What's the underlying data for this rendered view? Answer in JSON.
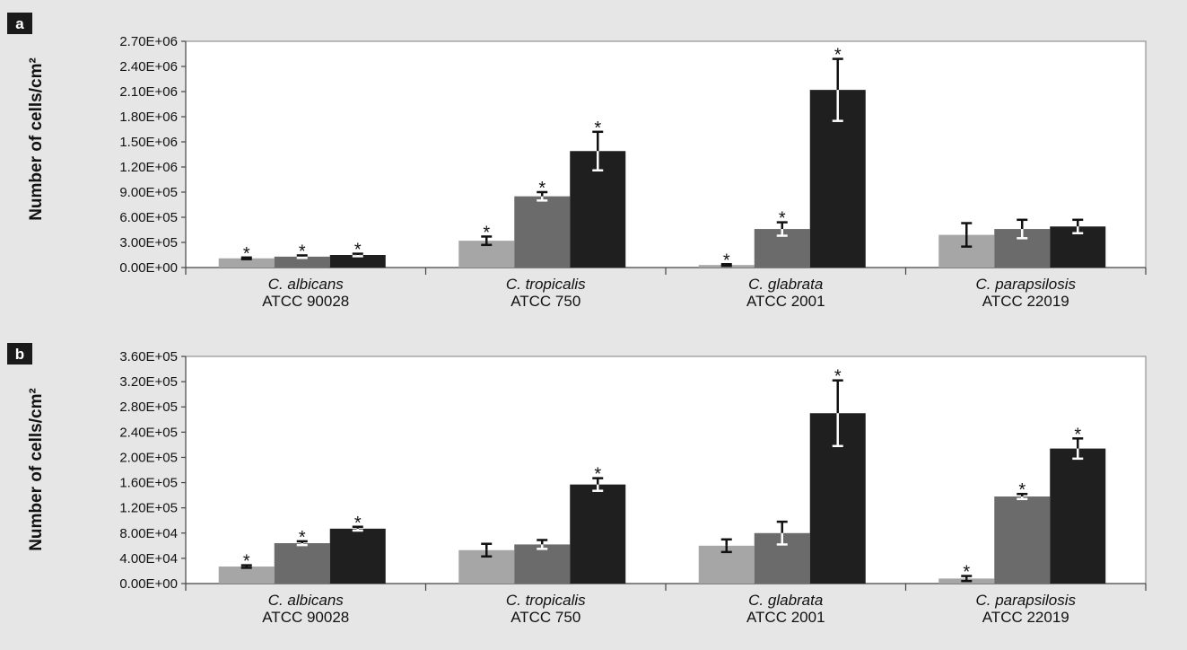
{
  "chart_data": [
    {
      "type": "bar",
      "panel": "a",
      "ylabel": "Number of cells/cm²",
      "ylim": [
        0,
        2700000
      ],
      "yticks": [
        "0.00E+00",
        "3.00E+05",
        "6.00E+05",
        "9.00E+05",
        "1.20E+06",
        "1.50E+06",
        "1.80E+06",
        "2.10E+06",
        "2.40E+06",
        "2.70E+06"
      ],
      "categories": [
        {
          "species": "C. albicans",
          "strain": "ATCC 90028"
        },
        {
          "species": "C. tropicalis",
          "strain": "ATCC 750"
        },
        {
          "species": "C. glabrata",
          "strain": "ATCC 2001"
        },
        {
          "species": "C. parapsilosis",
          "strain": "ATCC 22019"
        }
      ],
      "series": [
        {
          "color": "#a6a6a6",
          "values": [
            110000,
            320000,
            30000,
            390000
          ],
          "errors": [
            10000,
            50000,
            10000,
            140000
          ],
          "significant": [
            true,
            true,
            true,
            false
          ]
        },
        {
          "color": "#6b6b6b",
          "values": [
            130000,
            850000,
            460000,
            460000
          ],
          "errors": [
            15000,
            50000,
            80000,
            110000
          ],
          "significant": [
            true,
            true,
            true,
            false
          ]
        },
        {
          "color": "#1f1f1f",
          "values": [
            150000,
            1390000,
            2120000,
            490000
          ],
          "errors": [
            15000,
            230000,
            370000,
            80000
          ],
          "significant": [
            true,
            true,
            true,
            false
          ]
        }
      ]
    },
    {
      "type": "bar",
      "panel": "b",
      "ylabel": "Number of cells/cm²",
      "ylim": [
        0,
        360000
      ],
      "yticks": [
        "0.00E+00",
        "4.00E+04",
        "8.00E+04",
        "1.20E+05",
        "1.60E+05",
        "2.00E+05",
        "2.40E+05",
        "2.80E+05",
        "3.20E+05",
        "3.60E+05"
      ],
      "categories": [
        {
          "species": "C. albicans",
          "strain": "ATCC 90028"
        },
        {
          "species": "C. tropicalis",
          "strain": "ATCC 750"
        },
        {
          "species": "C. glabrata",
          "strain": "ATCC 2001"
        },
        {
          "species": "C. parapsilosis",
          "strain": "ATCC 22019"
        }
      ],
      "series": [
        {
          "color": "#a6a6a6",
          "values": [
            27000,
            53000,
            60000,
            8000
          ],
          "errors": [
            2000,
            10000,
            10000,
            4000
          ],
          "significant": [
            true,
            false,
            false,
            true
          ]
        },
        {
          "color": "#6b6b6b",
          "values": [
            64000,
            62000,
            80000,
            138000
          ],
          "errors": [
            3000,
            7000,
            18000,
            4000
          ],
          "significant": [
            true,
            false,
            false,
            true
          ]
        },
        {
          "color": "#1f1f1f",
          "values": [
            87000,
            157000,
            270000,
            214000
          ],
          "errors": [
            3000,
            10000,
            52000,
            16000
          ],
          "significant": [
            true,
            true,
            true,
            true
          ]
        }
      ]
    }
  ]
}
